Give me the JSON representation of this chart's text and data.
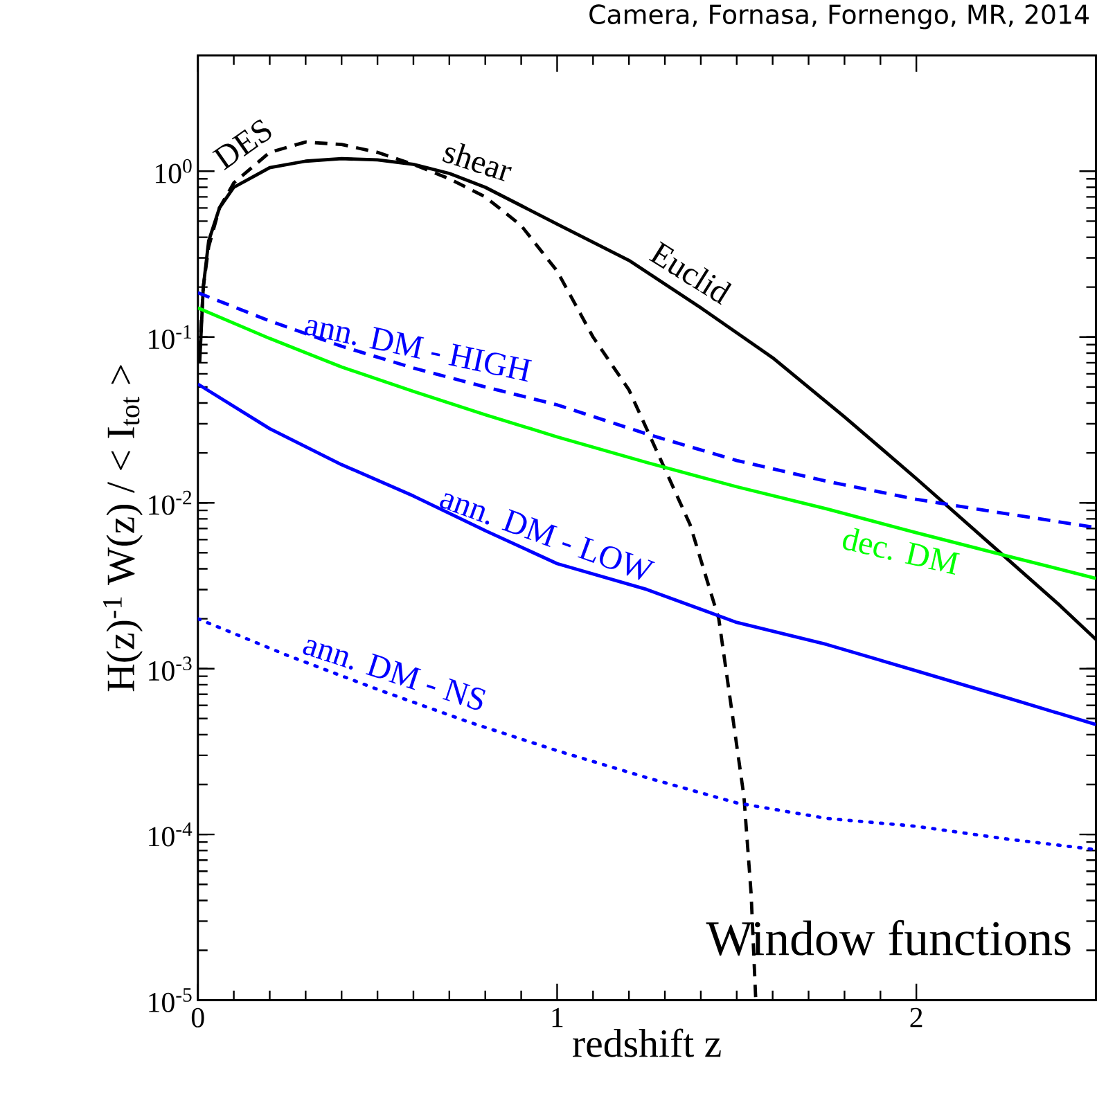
{
  "chart_data": {
    "type": "line",
    "xlabel": "redshift z",
    "ylabel": "H(z)$^{-1}$ W(z) / < I$_{tot}$ >",
    "xlim": [
      0,
      2.5
    ],
    "ylim": [
      1e-05,
      5
    ],
    "log": "y",
    "xticks": [
      0,
      1,
      2
    ],
    "yticks": [
      {
        "value": 1e-05,
        "label": "10$^{-5}$"
      },
      {
        "value": 0.0001,
        "label": "10$^{-4}$"
      },
      {
        "value": 0.001,
        "label": "10$^{-3}$"
      },
      {
        "value": 0.01,
        "label": "10$^{-2}$"
      },
      {
        "value": 0.1,
        "label": "10$^{-1}$"
      },
      {
        "value": 1,
        "label": "10$^{0}$"
      }
    ],
    "series": [
      {
        "color": "#000000",
        "line_style": "solid",
        "x": [
          0.005,
          0.015,
          0.03,
          0.06,
          0.1,
          0.2,
          0.3,
          0.4,
          0.5,
          0.6,
          0.7,
          0.8,
          0.9,
          1.0,
          1.2,
          1.4,
          1.6,
          1.8,
          2.0,
          2.2,
          2.4,
          2.5
        ],
        "values": [
          0.07,
          0.2,
          0.38,
          0.6,
          0.8,
          1.05,
          1.15,
          1.19,
          1.17,
          1.1,
          0.97,
          0.8,
          0.62,
          0.48,
          0.29,
          0.15,
          0.075,
          0.033,
          0.014,
          0.0058,
          0.0024,
          0.0015
        ]
      },
      {
        "color": "#000000",
        "line_style": "dashed",
        "x": [
          0.005,
          0.015,
          0.03,
          0.06,
          0.1,
          0.2,
          0.3,
          0.4,
          0.5,
          0.6,
          0.7,
          0.8,
          0.9,
          1.0,
          1.1,
          1.2,
          1.3,
          1.37,
          1.45,
          1.52,
          1.54,
          1.553
        ],
        "values": [
          0.08,
          0.2,
          0.35,
          0.6,
          0.85,
          1.3,
          1.5,
          1.45,
          1.3,
          1.1,
          0.9,
          0.7,
          0.47,
          0.25,
          0.1,
          0.048,
          0.016,
          0.0074,
          0.002,
          0.00017,
          4.4e-05,
          1e-05
        ]
      },
      {
        "color": "#0000ff",
        "line_style": "dashed",
        "x": [
          0,
          0.2,
          0.4,
          0.6,
          0.8,
          1.0,
          1.25,
          1.5,
          1.75,
          2.0,
          2.25,
          2.5
        ],
        "values": [
          0.185,
          0.125,
          0.088,
          0.065,
          0.05,
          0.039,
          0.026,
          0.018,
          0.0135,
          0.0105,
          0.0086,
          0.0071
        ]
      },
      {
        "color": "#00ff00",
        "line_style": "solid",
        "x": [
          0,
          0.2,
          0.4,
          0.6,
          0.8,
          1.0,
          1.25,
          1.5,
          1.75,
          2.0,
          2.25,
          2.5
        ],
        "values": [
          0.15,
          0.098,
          0.066,
          0.047,
          0.034,
          0.025,
          0.0175,
          0.0125,
          0.0092,
          0.0066,
          0.0048,
          0.0035
        ]
      },
      {
        "color": "#0000ff",
        "line_style": "solid",
        "x": [
          0,
          0.2,
          0.4,
          0.6,
          0.8,
          1.0,
          1.25,
          1.5,
          1.75,
          2.0,
          2.25,
          2.5
        ],
        "values": [
          0.052,
          0.028,
          0.017,
          0.011,
          0.0068,
          0.0043,
          0.003,
          0.0019,
          0.0014,
          0.00097,
          0.00067,
          0.00046
        ]
      },
      {
        "color": "#0000ff",
        "line_style": "dotted",
        "x": [
          0,
          0.25,
          0.5,
          0.75,
          1.0,
          1.25,
          1.5,
          1.75,
          2.0,
          2.25,
          2.5
        ],
        "values": [
          0.002,
          0.0012,
          0.00075,
          0.00048,
          0.00032,
          0.00022,
          0.000155,
          0.000125,
          0.000112,
          9.4e-05,
          8.1e-05
        ]
      }
    ],
    "annotations": [
      "Camera, Fornasa, Fornengo, MR, 2014",
      "Window functions",
      {
        "text": "DES",
        "x": 0.16,
        "y": 1.15
      },
      {
        "text": "shear",
        "x": 0.76,
        "y": 0.87
      },
      {
        "text": "Euclid",
        "x": 1.34,
        "y": 0.19
      },
      {
        "text": "ann. DM - HIGH",
        "x": 0.6,
        "y": 0.065
      },
      {
        "text": "ann. DM - LOW",
        "x": 0.95,
        "y": 0.0049
      },
      {
        "text": "dec. DM",
        "x": 1.97,
        "y": 0.0069
      },
      {
        "text": "ann. DM - NS",
        "x": 0.53,
        "y": 0.00072
      }
    ]
  }
}
